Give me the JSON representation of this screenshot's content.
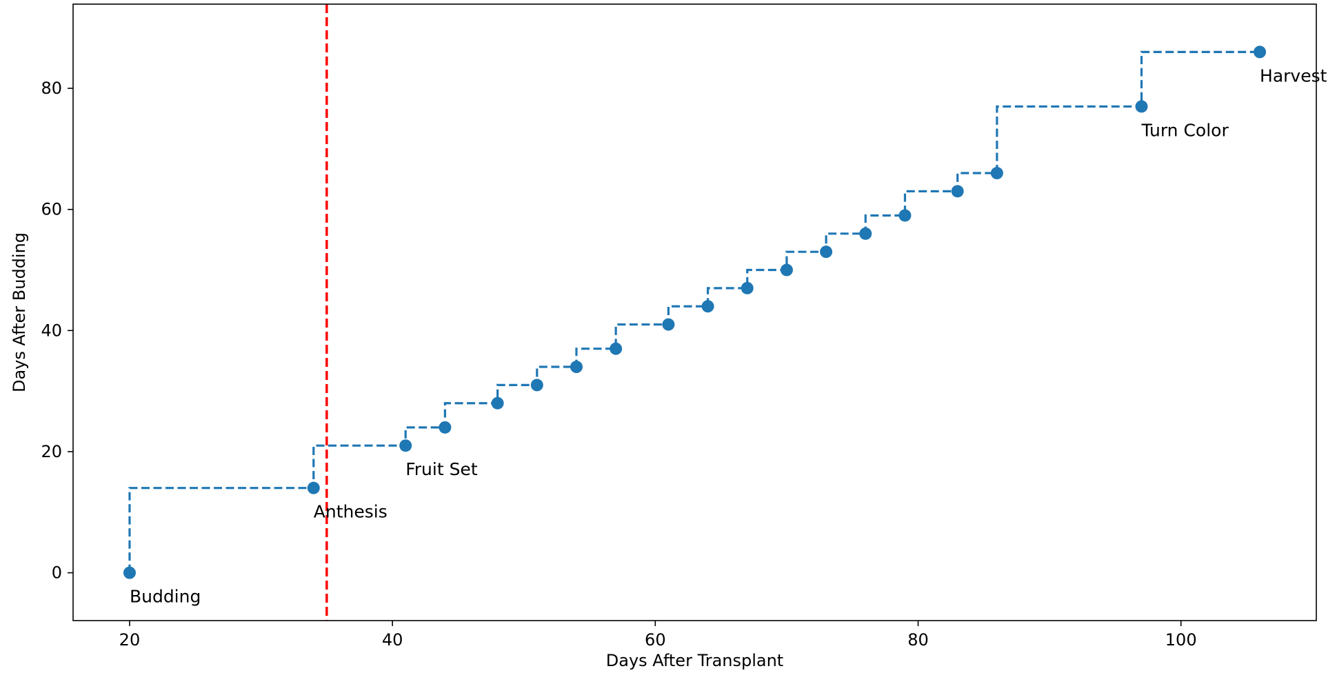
{
  "chart_data": {
    "type": "line",
    "step": "pre",
    "title": "",
    "xlabel": "Days After Transplant",
    "ylabel": "Days After Budding",
    "xlim": [
      15.7,
      110.3
    ],
    "ylim": [
      -7.9,
      93.9
    ],
    "x_ticks": [
      20,
      40,
      60,
      80,
      100
    ],
    "y_ticks": [
      0,
      20,
      40,
      60,
      80
    ],
    "grid": false,
    "legend": "none",
    "series": [
      {
        "x": [
          20,
          34,
          41,
          44,
          48,
          51,
          54,
          57,
          61,
          64,
          67,
          70,
          73,
          76,
          79,
          83,
          86,
          97,
          106
        ],
        "y": [
          0,
          14,
          21,
          24,
          28,
          31,
          34,
          37,
          41,
          44,
          47,
          50,
          53,
          56,
          59,
          63,
          66,
          77,
          86
        ],
        "color": "#1f77b4",
        "linestyle": "dashed",
        "marker": "circle"
      }
    ],
    "vlines": [
      {
        "x": 35,
        "color": "#ff0000",
        "linestyle": "dashed"
      }
    ],
    "annotations": [
      {
        "x": 20,
        "y": 0,
        "text": "Budding"
      },
      {
        "x": 34,
        "y": 14,
        "text": "Anthesis"
      },
      {
        "x": 41,
        "y": 21,
        "text": "Fruit Set"
      },
      {
        "x": 97,
        "y": 77,
        "text": "Turn Color"
      },
      {
        "x": 106,
        "y": 86,
        "text": "Harvest"
      }
    ]
  }
}
